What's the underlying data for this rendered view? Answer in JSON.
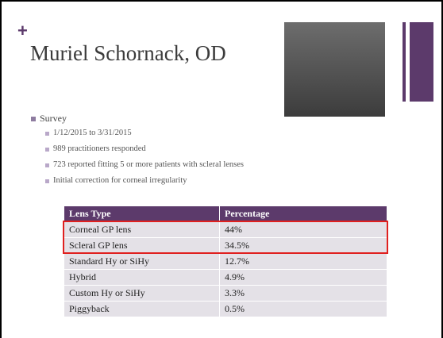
{
  "slide": {
    "title": "Muriel Schornack, OD",
    "plus": "+",
    "bullets": [
      {
        "text": "Survey",
        "sub": [
          "1/12/2015 to 3/31/2015",
          "989 practitioners responded",
          "723 reported fitting 5 or more patients with scleral lenses",
          "Initial correction for corneal irregularity"
        ]
      }
    ],
    "table": {
      "header": [
        "Lens Type",
        "Percentage"
      ],
      "rows": [
        [
          "Corneal GP lens",
          "44%"
        ],
        [
          "Scleral GP lens",
          "34.5%"
        ],
        [
          "Standard Hy or SiHy",
          "12.7%"
        ],
        [
          "Hybrid",
          "4.9%"
        ],
        [
          "Custom Hy or SiHy",
          "3.3%"
        ],
        [
          "Piggyback",
          "0.5%"
        ]
      ]
    }
  }
}
